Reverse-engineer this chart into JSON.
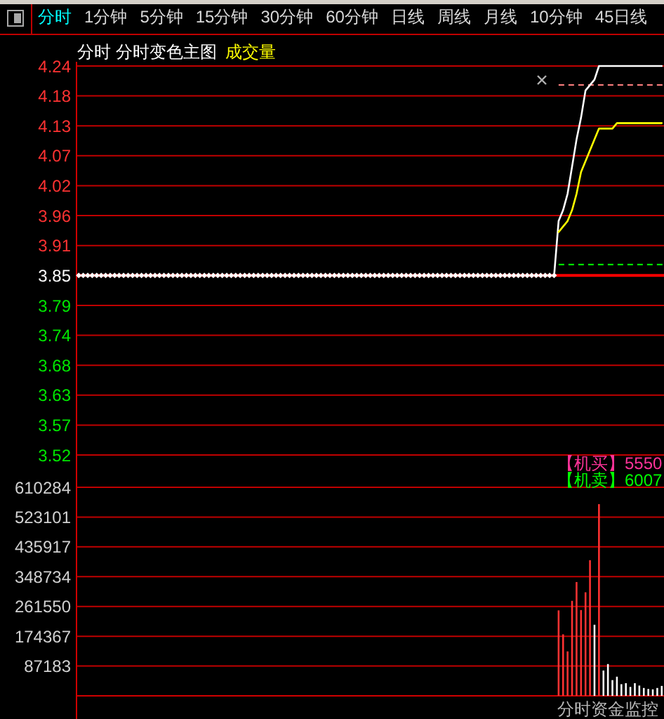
{
  "chart_data": [
    {
      "type": "line",
      "title": "分时 分时变色主图",
      "subtitle": "成交量",
      "annotations": [
        "分时",
        "1分钟",
        "5分钟",
        "15分钟",
        "30分钟",
        "60分钟",
        "日线",
        "周线",
        "月线",
        "10分钟",
        "45日线"
      ],
      "categories": [
        null,
        null,
        null,
        null,
        null,
        null,
        null,
        null,
        null,
        null,
        null,
        null,
        null,
        null,
        null,
        null,
        null,
        null,
        null,
        null,
        null,
        null,
        null,
        null,
        null,
        null,
        null,
        null,
        null,
        null,
        null,
        null,
        null,
        null,
        null,
        null,
        null,
        null,
        null,
        null,
        null,
        null,
        null,
        null,
        null,
        null,
        null,
        null,
        null,
        null,
        null,
        null,
        null,
        null,
        null,
        null,
        null,
        null,
        null,
        null,
        null,
        null,
        null,
        null,
        null,
        null,
        null,
        null,
        null,
        null,
        null,
        null,
        null,
        null,
        null,
        null,
        null,
        null,
        null,
        null,
        null,
        null,
        null,
        null,
        null,
        null,
        null,
        null,
        null,
        null,
        null,
        null,
        null,
        null,
        null,
        null,
        null,
        null,
        null,
        null,
        null,
        null,
        null,
        null,
        null,
        null,
        null,
        null,
        null,
        null,
        null,
        null,
        null,
        null,
        null,
        null,
        null,
        null,
        null,
        null,
        null,
        null,
        null,
        null,
        null,
        null,
        null,
        null,
        null,
        null,
        null
      ],
      "series": [
        {
          "color": "#ffffff",
          "marker": "diamond",
          "values": [
            3.85,
            3.85,
            3.85,
            3.85,
            3.85,
            3.85,
            3.85,
            3.85,
            3.85,
            3.85,
            3.85,
            3.85,
            3.85,
            3.85,
            3.85,
            3.85,
            3.85,
            3.85,
            3.85,
            3.85,
            3.85,
            3.85,
            3.85,
            3.85,
            3.85,
            3.85,
            3.85,
            3.85,
            3.85,
            3.85,
            3.85,
            3.85,
            3.85,
            3.85,
            3.85,
            3.85,
            3.85,
            3.85,
            3.85,
            3.85,
            3.85,
            3.85,
            3.85,
            3.85,
            3.85,
            3.85,
            3.85,
            3.85,
            3.85,
            3.85,
            3.85,
            3.85,
            3.85,
            3.85,
            3.85,
            3.85,
            3.85,
            3.85,
            3.85,
            3.85,
            3.85,
            3.85,
            3.85,
            3.85,
            3.85,
            3.85,
            3.85,
            3.85,
            3.85,
            3.85,
            3.85,
            3.85,
            3.85,
            3.85,
            3.85,
            3.85,
            3.85,
            3.85,
            3.85,
            3.85,
            3.85,
            3.85,
            3.85,
            3.85,
            3.85,
            3.85,
            3.85,
            3.85,
            3.85,
            3.85,
            3.85,
            3.85,
            3.85,
            3.85,
            3.85,
            3.85,
            3.85,
            3.85,
            3.85,
            3.85,
            3.85,
            3.85,
            3.85,
            3.85,
            3.85,
            3.85,
            3.85,
            null,
            null,
            null,
            null,
            null,
            null,
            null,
            null,
            null,
            null,
            null,
            null,
            null,
            null,
            null,
            null,
            null,
            null,
            null,
            null,
            null,
            null,
            null,
            null
          ]
        },
        {
          "color": "#ffffff",
          "values": [
            null,
            null,
            null,
            null,
            null,
            null,
            null,
            null,
            null,
            null,
            null,
            null,
            null,
            null,
            null,
            null,
            null,
            null,
            null,
            null,
            null,
            null,
            null,
            null,
            null,
            null,
            null,
            null,
            null,
            null,
            null,
            null,
            null,
            null,
            null,
            null,
            null,
            null,
            null,
            null,
            null,
            null,
            null,
            null,
            null,
            null,
            null,
            null,
            null,
            null,
            null,
            null,
            null,
            null,
            null,
            null,
            null,
            null,
            null,
            null,
            null,
            null,
            null,
            null,
            null,
            null,
            null,
            null,
            null,
            null,
            null,
            null,
            null,
            null,
            null,
            null,
            null,
            null,
            null,
            null,
            null,
            null,
            null,
            null,
            null,
            null,
            null,
            null,
            null,
            null,
            null,
            null,
            null,
            null,
            null,
            null,
            null,
            null,
            null,
            null,
            null,
            null,
            null,
            null,
            null,
            null,
            3.85,
            3.95,
            3.97,
            4.0,
            4.05,
            4.1,
            4.14,
            4.19,
            4.2,
            4.21,
            4.235,
            4.235,
            4.235,
            4.235,
            4.235,
            4.235,
            4.235,
            4.235,
            4.235,
            4.235,
            4.235,
            4.235,
            4.235,
            4.235,
            4.235
          ]
        },
        {
          "color": "#ffff00",
          "values": [
            null,
            null,
            null,
            null,
            null,
            null,
            null,
            null,
            null,
            null,
            null,
            null,
            null,
            null,
            null,
            null,
            null,
            null,
            null,
            null,
            null,
            null,
            null,
            null,
            null,
            null,
            null,
            null,
            null,
            null,
            null,
            null,
            null,
            null,
            null,
            null,
            null,
            null,
            null,
            null,
            null,
            null,
            null,
            null,
            null,
            null,
            null,
            null,
            null,
            null,
            null,
            null,
            null,
            null,
            null,
            null,
            null,
            null,
            null,
            null,
            null,
            null,
            null,
            null,
            null,
            null,
            null,
            null,
            null,
            null,
            null,
            null,
            null,
            null,
            null,
            null,
            null,
            null,
            null,
            null,
            null,
            null,
            null,
            null,
            null,
            null,
            null,
            null,
            null,
            null,
            null,
            null,
            null,
            null,
            null,
            null,
            null,
            null,
            null,
            null,
            null,
            null,
            null,
            null,
            null,
            null,
            null,
            3.93,
            3.94,
            3.95,
            3.97,
            4.0,
            4.04,
            4.06,
            4.08,
            4.1,
            4.12,
            4.12,
            4.12,
            4.12,
            4.13,
            4.13,
            4.13,
            4.13,
            4.13,
            4.13,
            4.13,
            4.13,
            4.13,
            4.13,
            4.13
          ]
        }
      ],
      "ylim": [
        3.52,
        4.235
      ],
      "yticks": [
        3.52,
        {
          "value": 3.575,
          "label": "3.57"
        },
        3.63,
        {
          "value": 3.685,
          "label": "3.68"
        },
        3.74,
        {
          "value": 3.795,
          "label": "3.79"
        },
        3.85,
        {
          "value": 3.905,
          "label": "3.91"
        },
        3.96,
        {
          "value": 4.015,
          "label": "4.02"
        },
        4.07,
        {
          "value": 4.125,
          "label": "4.13"
        },
        4.18,
        {
          "value": 4.235,
          "label": "4.24"
        }
      ],
      "grid": "y",
      "tick_labels": "y",
      "ref_lines": [
        {
          "axis": "y",
          "value": 3.85,
          "color": "#ff0000"
        },
        {
          "axis": "y",
          "value": 4.2,
          "color": "#ff8080",
          "line_style": "dashed"
        },
        {
          "axis": "y",
          "value": 3.87,
          "color": "#00ff00",
          "line_style": "dashed"
        }
      ]
    },
    {
      "type": "bar",
      "annotations": [
        "【机买】5550",
        "【机卖】6007",
        "分时资金监控"
      ],
      "categories": [
        null,
        null,
        null,
        null,
        null,
        null,
        null,
        null,
        null,
        null,
        null,
        null,
        null,
        null,
        null,
        null,
        null,
        null,
        null,
        null,
        null,
        null,
        null,
        null,
        null,
        null,
        null,
        null,
        null,
        null,
        null,
        null,
        null,
        null,
        null,
        null,
        null,
        null,
        null,
        null,
        null,
        null,
        null,
        null,
        null,
        null,
        null,
        null,
        null,
        null,
        null,
        null,
        null,
        null,
        null,
        null,
        null,
        null,
        null,
        null,
        null,
        null,
        null,
        null,
        null,
        null,
        null,
        null,
        null,
        null,
        null,
        null,
        null,
        null,
        null,
        null,
        null,
        null,
        null,
        null,
        null,
        null,
        null,
        null,
        null,
        null,
        null,
        null,
        null,
        null,
        null,
        null,
        null,
        null,
        null,
        null,
        null,
        null,
        null,
        null,
        null,
        null,
        null,
        null,
        null,
        null,
        null,
        null,
        null,
        null,
        null,
        null,
        null,
        null,
        null,
        null,
        null,
        null,
        null,
        null,
        null,
        null,
        null,
        null,
        null,
        null,
        null,
        null,
        null,
        null,
        null
      ],
      "values": [
        null,
        null,
        null,
        null,
        null,
        null,
        null,
        null,
        null,
        null,
        null,
        null,
        null,
        null,
        null,
        null,
        null,
        null,
        null,
        null,
        null,
        null,
        null,
        null,
        null,
        null,
        null,
        null,
        null,
        null,
        null,
        null,
        null,
        null,
        null,
        null,
        null,
        null,
        null,
        null,
        null,
        null,
        null,
        null,
        null,
        null,
        null,
        null,
        null,
        null,
        null,
        null,
        null,
        null,
        null,
        null,
        null,
        null,
        null,
        null,
        null,
        null,
        null,
        null,
        null,
        null,
        null,
        null,
        null,
        null,
        null,
        null,
        null,
        null,
        null,
        null,
        null,
        null,
        null,
        null,
        null,
        null,
        null,
        null,
        null,
        null,
        null,
        null,
        null,
        null,
        null,
        null,
        null,
        null,
        null,
        null,
        null,
        null,
        null,
        null,
        null,
        null,
        null,
        null,
        null,
        null,
        null,
        250000,
        180000,
        130000,
        278000,
        333000,
        251000,
        303000,
        397000,
        208000,
        561000,
        74000,
        93000,
        46000,
        56000,
        34000,
        37000,
        26000,
        37000,
        30000,
        23000,
        20000,
        19000,
        23000,
        29000
      ],
      "colors": [
        null,
        null,
        null,
        null,
        null,
        null,
        null,
        null,
        null,
        null,
        null,
        null,
        null,
        null,
        null,
        null,
        null,
        null,
        null,
        null,
        null,
        null,
        null,
        null,
        null,
        null,
        null,
        null,
        null,
        null,
        null,
        null,
        null,
        null,
        null,
        null,
        null,
        null,
        null,
        null,
        null,
        null,
        null,
        null,
        null,
        null,
        null,
        null,
        null,
        null,
        null,
        null,
        null,
        null,
        null,
        null,
        null,
        null,
        null,
        null,
        null,
        null,
        null,
        null,
        null,
        null,
        null,
        null,
        null,
        null,
        null,
        null,
        null,
        null,
        null,
        null,
        null,
        null,
        null,
        null,
        null,
        null,
        null,
        null,
        null,
        null,
        null,
        null,
        null,
        null,
        null,
        null,
        null,
        null,
        null,
        null,
        null,
        null,
        null,
        null,
        null,
        null,
        null,
        null,
        null,
        null,
        null,
        "#ff3232",
        "#ff3232",
        "#ff3232",
        "#ff3232",
        "#ff3232",
        "#ff3232",
        "#ff3232",
        "#ff3232",
        "#ffffff",
        "#ff3232",
        "#ffffff",
        "#ffffff",
        "#ffffff",
        "#ffffff",
        "#ffffff",
        "#ffffff",
        "#ffffff",
        "#ffffff",
        "#ffffff",
        "#ffffff",
        "#ffffff",
        "#ffffff",
        "#ffffff",
        "#ffffff"
      ],
      "ylim": [
        0,
        610284
      ],
      "yticks": [
        87183,
        174367,
        261550,
        348734,
        435917,
        523101,
        610284
      ],
      "grid": "y",
      "tick_labels": "y"
    }
  ]
}
